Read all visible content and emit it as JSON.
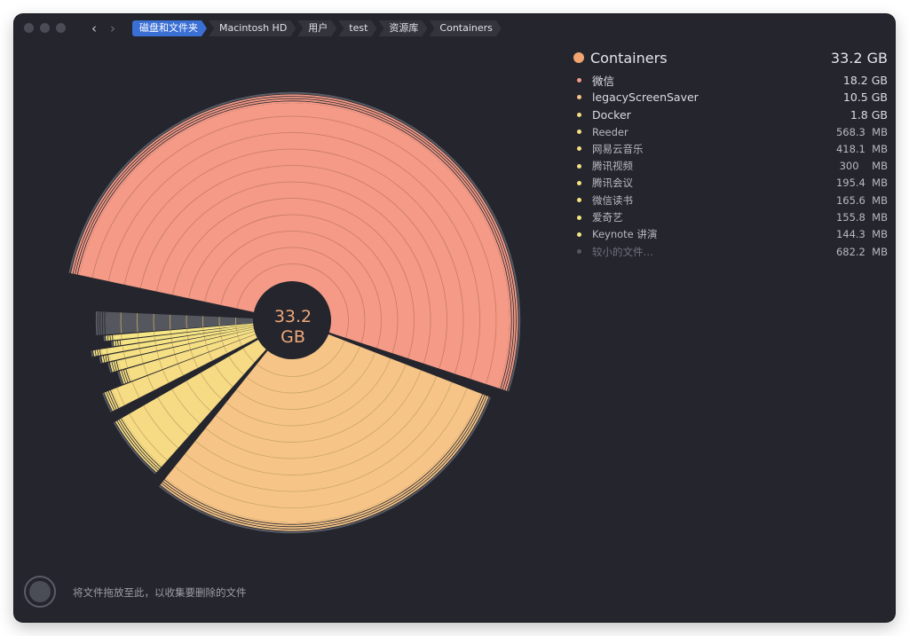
{
  "toolbar": {
    "back_label": "‹",
    "forward_label": "›",
    "breadcrumb": [
      "磁盘和文件夹",
      "Macintosh HD",
      "用户",
      "test",
      "资源库",
      "Containers"
    ]
  },
  "center": {
    "value": "33.2",
    "unit": "GB"
  },
  "legend": {
    "title": "Containers",
    "title_size": "33.2 GB",
    "title_color": "#f2a470",
    "items": [
      {
        "name": "微信",
        "size": "18.2 GB",
        "color": "#f49a86"
      },
      {
        "name": "legacyScreenSaver",
        "size": "10.5 GB",
        "color": "#f6c486"
      },
      {
        "name": "Docker",
        "size": "1.8 GB",
        "color": "#f6db84"
      },
      {
        "name": "Reeder",
        "size": "568.3  MB",
        "color": "#f6dc84"
      },
      {
        "name": "网易云音乐",
        "size": "418.1  MB",
        "color": "#f6de84"
      },
      {
        "name": "腾讯视频",
        "size": "300    MB",
        "color": "#f6e084"
      },
      {
        "name": "腾讯会议",
        "size": "195.4  MB",
        "color": "#f6e184"
      },
      {
        "name": "微信读书",
        "size": "165.6  MB",
        "color": "#f6e384"
      },
      {
        "name": "爱奇艺",
        "size": "155.8  MB",
        "color": "#f6e484"
      },
      {
        "name": "Keynote 讲演",
        "size": "144.3  MB",
        "color": "#f6e684"
      },
      {
        "name": "较小的文件…",
        "size": "682.2  MB",
        "color": "#55575f"
      }
    ]
  },
  "footer": {
    "drop_text": "将文件拖放至此，以收集要删除的文件"
  },
  "chart_data": {
    "type": "pie",
    "title": "",
    "center_label": "33.2 GB",
    "unit": "GB",
    "categories": [
      "微信",
      "legacyScreenSaver",
      "Docker",
      "Reeder",
      "网易云音乐",
      "腾讯视频",
      "腾讯会议",
      "微信读书",
      "爱奇艺",
      "Keynote 讲演",
      "较小的文件…"
    ],
    "values": [
      18.2,
      10.5,
      1.8,
      0.5683,
      0.4181,
      0.3,
      0.1954,
      0.1656,
      0.1558,
      0.1443,
      0.6822
    ],
    "colors": [
      "#f49a86",
      "#f6c486",
      "#f6db84",
      "#f6dc84",
      "#f6de84",
      "#f6e084",
      "#f6e184",
      "#f6e384",
      "#f6e484",
      "#f6e684",
      "#55575f"
    ],
    "total": 33.2
  }
}
